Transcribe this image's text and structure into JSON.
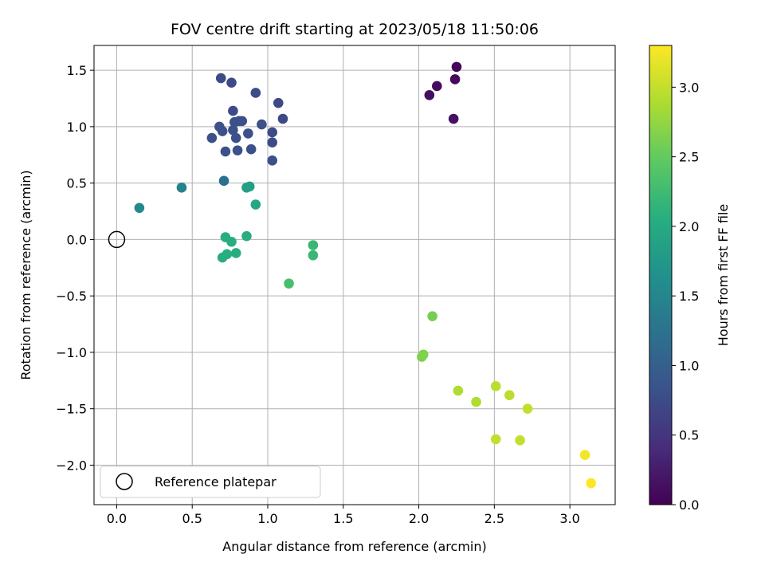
{
  "chart_data": {
    "type": "scatter",
    "title": "FOV centre drift starting at 2023/05/18 11:50:06",
    "xlabel": "Angular distance from reference (arcmin)",
    "ylabel": "Rotation from reference (arcmin)",
    "xlim": [
      -0.15,
      3.3
    ],
    "ylim": [
      -2.35,
      1.72
    ],
    "xticks": [
      0.0,
      0.5,
      1.0,
      1.5,
      2.0,
      2.5,
      3.0
    ],
    "xtick_labels": [
      "0.0",
      "0.5",
      "1.0",
      "1.5",
      "2.0",
      "2.5",
      "3.0"
    ],
    "yticks": [
      1.5,
      1.0,
      0.5,
      0.0,
      -0.5,
      -1.0,
      -1.5,
      -2.0
    ],
    "ytick_labels": [
      "1.5",
      "1.0",
      "0.5",
      "0.0",
      "−0.5",
      "−1.0",
      "−1.5",
      "−2.0"
    ],
    "grid": true,
    "colormap": "viridis",
    "colorbar": {
      "label": "Hours from first FF file",
      "range": [
        0.0,
        3.3
      ],
      "ticks": [
        0.0,
        0.5,
        1.0,
        1.5,
        2.0,
        2.5,
        3.0
      ],
      "tick_labels": [
        "0.0",
        "0.5",
        "1.0",
        "1.5",
        "2.0",
        "2.5",
        "3.0"
      ]
    },
    "legend": {
      "placement": "lower-left",
      "entries": [
        "Reference platepar"
      ]
    },
    "reference_point": {
      "x": 0.0,
      "y": 0.0
    },
    "points": [
      {
        "x": 2.25,
        "y": 1.53,
        "c": 0.05
      },
      {
        "x": 2.24,
        "y": 1.42,
        "c": 0.08
      },
      {
        "x": 2.12,
        "y": 1.36,
        "c": 0.1
      },
      {
        "x": 2.07,
        "y": 1.28,
        "c": 0.12
      },
      {
        "x": 2.23,
        "y": 1.07,
        "c": 0.15
      },
      {
        "x": 0.69,
        "y": 1.43,
        "c": 0.75
      },
      {
        "x": 0.76,
        "y": 1.39,
        "c": 0.75
      },
      {
        "x": 0.92,
        "y": 1.3,
        "c": 0.75
      },
      {
        "x": 1.07,
        "y": 1.21,
        "c": 0.72
      },
      {
        "x": 0.77,
        "y": 1.14,
        "c": 0.75
      },
      {
        "x": 1.1,
        "y": 1.07,
        "c": 0.72
      },
      {
        "x": 0.78,
        "y": 1.04,
        "c": 0.8
      },
      {
        "x": 0.81,
        "y": 1.05,
        "c": 0.8
      },
      {
        "x": 0.83,
        "y": 1.05,
        "c": 0.8
      },
      {
        "x": 0.96,
        "y": 1.02,
        "c": 0.8
      },
      {
        "x": 0.68,
        "y": 1.0,
        "c": 0.8
      },
      {
        "x": 0.7,
        "y": 0.96,
        "c": 0.8
      },
      {
        "x": 0.77,
        "y": 0.97,
        "c": 0.8
      },
      {
        "x": 0.87,
        "y": 0.94,
        "c": 0.8
      },
      {
        "x": 1.03,
        "y": 0.95,
        "c": 0.75
      },
      {
        "x": 0.63,
        "y": 0.9,
        "c": 0.8
      },
      {
        "x": 0.79,
        "y": 0.9,
        "c": 0.8
      },
      {
        "x": 1.03,
        "y": 0.86,
        "c": 0.75
      },
      {
        "x": 0.72,
        "y": 0.78,
        "c": 0.8
      },
      {
        "x": 0.8,
        "y": 0.79,
        "c": 0.8
      },
      {
        "x": 0.89,
        "y": 0.8,
        "c": 0.8
      },
      {
        "x": 1.03,
        "y": 0.7,
        "c": 0.8
      },
      {
        "x": 0.71,
        "y": 0.52,
        "c": 1.2
      },
      {
        "x": 0.43,
        "y": 0.46,
        "c": 1.45
      },
      {
        "x": 0.15,
        "y": 0.28,
        "c": 1.55
      },
      {
        "x": 0.86,
        "y": 0.46,
        "c": 1.85
      },
      {
        "x": 0.88,
        "y": 0.47,
        "c": 1.85
      },
      {
        "x": 0.92,
        "y": 0.31,
        "c": 1.95
      },
      {
        "x": 0.72,
        "y": 0.02,
        "c": 2.05
      },
      {
        "x": 0.86,
        "y": 0.03,
        "c": 2.05
      },
      {
        "x": 0.76,
        "y": -0.02,
        "c": 2.05
      },
      {
        "x": 0.7,
        "y": -0.16,
        "c": 2.05
      },
      {
        "x": 0.73,
        "y": -0.13,
        "c": 2.05
      },
      {
        "x": 0.79,
        "y": -0.12,
        "c": 2.05
      },
      {
        "x": 1.3,
        "y": -0.05,
        "c": 2.2
      },
      {
        "x": 1.3,
        "y": -0.14,
        "c": 2.2
      },
      {
        "x": 1.14,
        "y": -0.39,
        "c": 2.3
      },
      {
        "x": 2.09,
        "y": -0.68,
        "c": 2.6
      },
      {
        "x": 2.03,
        "y": -1.02,
        "c": 2.65
      },
      {
        "x": 2.02,
        "y": -1.04,
        "c": 2.65
      },
      {
        "x": 2.26,
        "y": -1.34,
        "c": 2.9
      },
      {
        "x": 2.38,
        "y": -1.44,
        "c": 2.9
      },
      {
        "x": 2.51,
        "y": -1.3,
        "c": 2.95
      },
      {
        "x": 2.6,
        "y": -1.38,
        "c": 2.95
      },
      {
        "x": 2.72,
        "y": -1.5,
        "c": 3.0
      },
      {
        "x": 2.51,
        "y": -1.77,
        "c": 3.0
      },
      {
        "x": 2.67,
        "y": -1.78,
        "c": 3.0
      },
      {
        "x": 3.1,
        "y": -1.91,
        "c": 3.25
      },
      {
        "x": 3.14,
        "y": -2.16,
        "c": 3.3
      }
    ]
  }
}
